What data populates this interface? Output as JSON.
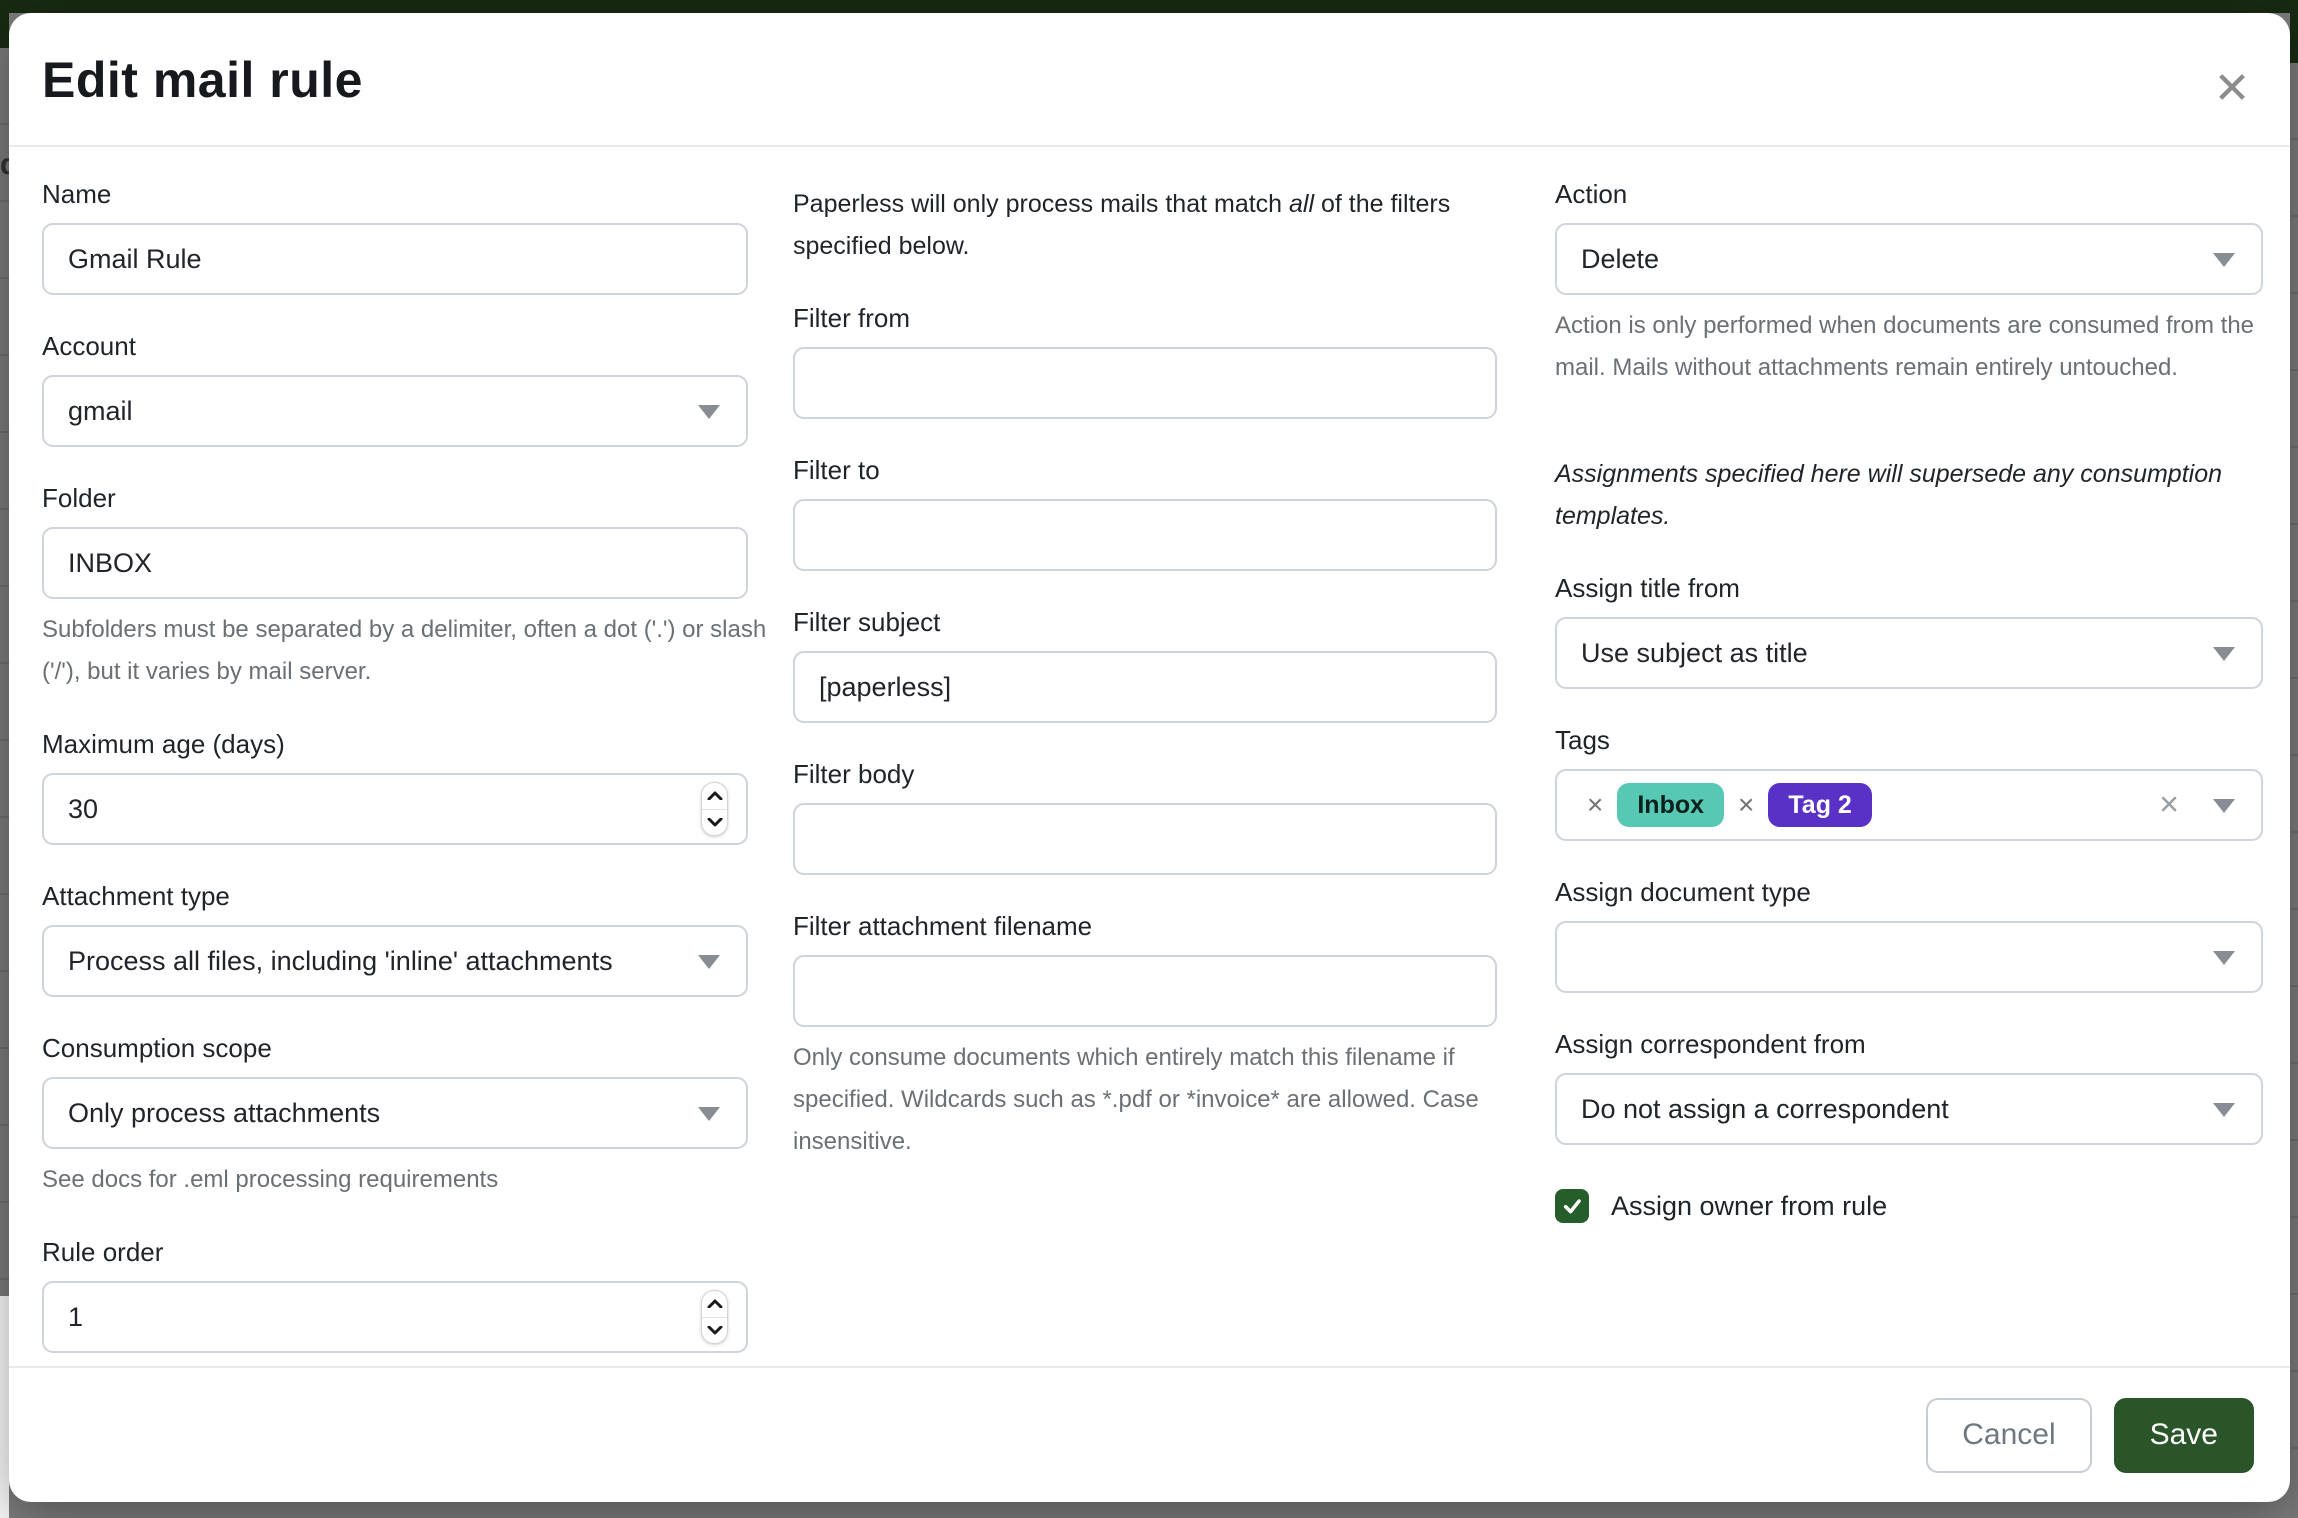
{
  "backdrop": {
    "fragment_text": "d"
  },
  "modal": {
    "title": "Edit mail rule",
    "close_icon": "✕",
    "form": {
      "name": {
        "label": "Name",
        "value": "Gmail Rule"
      },
      "account": {
        "label": "Account",
        "value": "gmail"
      },
      "folder": {
        "label": "Folder",
        "value": "INBOX",
        "help": "Subfolders must be separated by a delimiter, often a dot ('.') or slash ('/'), but it varies by mail server."
      },
      "maximum_age": {
        "label": "Maximum age (days)",
        "value": "30"
      },
      "attachment_type": {
        "label": "Attachment type",
        "value": "Process all files, including 'inline' attachments"
      },
      "consumption_scope": {
        "label": "Consumption scope",
        "value": "Only process attachments",
        "help": "See docs for .eml processing requirements"
      },
      "rule_order": {
        "label": "Rule order",
        "value": "1"
      },
      "filters_intro": {
        "prefix": "Paperless will only process mails that match ",
        "emphasis": "all",
        "suffix": " of the filters specified below."
      },
      "filter_from": {
        "label": "Filter from",
        "value": ""
      },
      "filter_to": {
        "label": "Filter to",
        "value": ""
      },
      "filter_subject": {
        "label": "Filter subject",
        "value": "[paperless]"
      },
      "filter_body": {
        "label": "Filter body",
        "value": ""
      },
      "filter_attachment_filename": {
        "label": "Filter attachment filename",
        "value": "",
        "help": "Only consume documents which entirely match this filename if specified. Wildcards such as *.pdf or *invoice* are allowed. Case insensitive."
      },
      "action": {
        "label": "Action",
        "value": "Delete",
        "help": "Action is only performed when documents are consumed from the mail. Mails without attachments remain entirely untouched."
      },
      "assignments_note": "Assignments specified here will supersede any consumption templates.",
      "assign_title_from": {
        "label": "Assign title from",
        "value": "Use subject as title"
      },
      "tags": {
        "label": "Tags",
        "remove_icon": "×",
        "clear_icon": "×",
        "items": [
          {
            "name": "Inbox",
            "color": "#57c8b4",
            "text_color": "#0d211c"
          },
          {
            "name": "Tag 2",
            "color": "#5a31c6",
            "text_color": "#ffffff"
          }
        ]
      },
      "assign_document_type": {
        "label": "Assign document type",
        "value": ""
      },
      "assign_correspondent_from": {
        "label": "Assign correspondent from",
        "value": "Do not assign a correspondent"
      },
      "assign_owner": {
        "label": "Assign owner from rule",
        "checked": true
      }
    },
    "footer": {
      "cancel_label": "Cancel",
      "save_label": "Save"
    },
    "colors": {
      "primary_green": "#2a5529",
      "checkbox_green": "#265e2b",
      "header_green": "#182a12"
    }
  }
}
